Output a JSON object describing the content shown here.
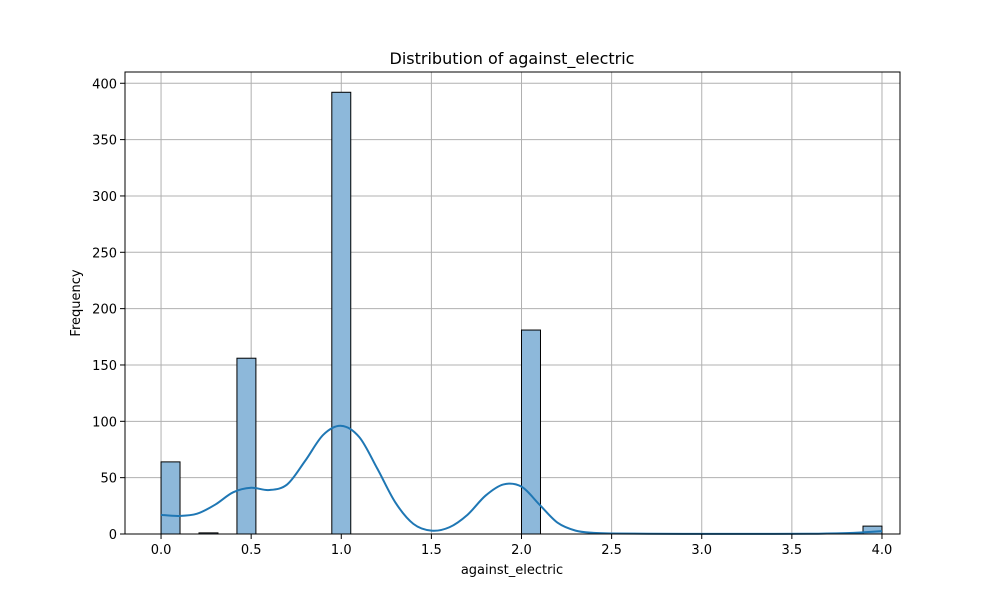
{
  "chart_data": {
    "type": "bar",
    "title": "Distribution of against_electric",
    "xlabel": "against_electric",
    "ylabel": "Frequency",
    "xlim": [
      -0.2,
      4.1
    ],
    "ylim": [
      0,
      410
    ],
    "grid": true,
    "x_ticks": [
      "0.0",
      "0.5",
      "1.0",
      "1.5",
      "2.0",
      "2.5",
      "3.0",
      "3.5",
      "4.0"
    ],
    "y_ticks": [
      "0",
      "50",
      "100",
      "150",
      "200",
      "250",
      "300",
      "350",
      "400"
    ],
    "bins": [
      {
        "start": 0.0,
        "end": 0.1053,
        "count": 64
      },
      {
        "start": 0.2105,
        "end": 0.3158,
        "count": 1
      },
      {
        "start": 0.4211,
        "end": 0.5263,
        "count": 156
      },
      {
        "start": 0.9474,
        "end": 1.0526,
        "count": 392
      },
      {
        "start": 2.0,
        "end": 2.1053,
        "count": 181
      },
      {
        "start": 3.8947,
        "end": 4.0,
        "count": 7
      }
    ],
    "kde": {
      "x": [
        0.0,
        0.1,
        0.2,
        0.3,
        0.4,
        0.5,
        0.6,
        0.7,
        0.8,
        0.9,
        1.0,
        1.1,
        1.2,
        1.3,
        1.4,
        1.5,
        1.6,
        1.7,
        1.8,
        1.9,
        2.0,
        2.1,
        2.2,
        2.3,
        2.4,
        2.5,
        2.7,
        3.0,
        3.3,
        3.6,
        3.8,
        3.9,
        4.0
      ],
      "y": [
        17,
        16,
        18,
        26,
        37,
        41,
        39,
        44,
        65,
        88,
        96,
        86,
        58,
        28,
        9,
        3,
        6,
        17,
        34,
        44,
        42,
        26,
        10,
        3,
        1,
        0.5,
        0.2,
        0.1,
        0.1,
        0.2,
        0.8,
        1.5,
        2.5
      ]
    },
    "colors": {
      "bar_fill": "#8db8da",
      "bar_edge": "#000000",
      "kde_line": "#1f77b4",
      "grid": "#b0b0b0"
    }
  }
}
